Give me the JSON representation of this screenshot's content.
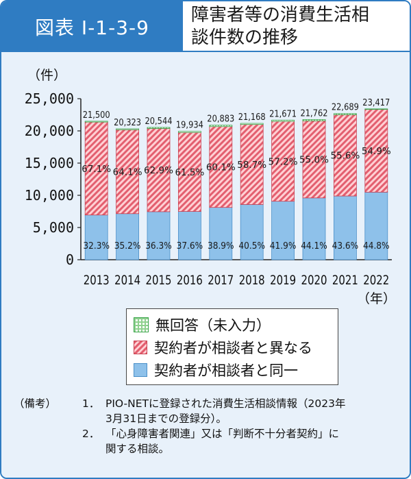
{
  "header": {
    "figure_label": "図表 I-1-3-9",
    "title_line1": "障害者等の消費生活相",
    "title_line2": "談件数の推移"
  },
  "colors": {
    "frame_blue": "#2f7cc2",
    "panel_bg": "#e8f1fa",
    "same_fill": "#8ec1ea",
    "diff_stripe": "#e35f6f",
    "diff_bg": "#ffd0d4",
    "none_fill": "#8fd18f"
  },
  "legend": {
    "items": [
      {
        "key": "none",
        "label": "無回答（未入力）"
      },
      {
        "key": "diff",
        "label": "契約者が相談者と異なる"
      },
      {
        "key": "same",
        "label": "契約者が相談者と同一"
      }
    ]
  },
  "notes": {
    "label": "（備考）",
    "items": [
      {
        "num": "1．",
        "line1": "PIO-NETに登録された消費生活相談情報（2023年",
        "line2": "3月31日までの登録分）。"
      },
      {
        "num": "2．",
        "line1": "「心身障害者関連」又は「判断不十分者契約」に",
        "line2": "関する相談。"
      }
    ]
  },
  "chart_data": {
    "type": "bar",
    "stacked": true,
    "y_unit_label": "（件）",
    "x_unit_label": "（年）",
    "categories": [
      "2013",
      "2014",
      "2015",
      "2016",
      "2017",
      "2018",
      "2019",
      "2020",
      "2021",
      "2022"
    ],
    "totals": [
      "21,500",
      "20,323",
      "20,544",
      "19,934",
      "20,883",
      "21,168",
      "21,671",
      "21,762",
      "22,689",
      "23,417"
    ],
    "total_values": [
      21500,
      20323,
      20544,
      19934,
      20883,
      21168,
      21671,
      21762,
      22689,
      23417
    ],
    "series": [
      {
        "name": "契約者が相談者と同一",
        "key": "same",
        "percent_labels": [
          "32.3%",
          "35.2%",
          "36.3%",
          "37.6%",
          "38.9%",
          "40.5%",
          "41.9%",
          "44.1%",
          "43.6%",
          "44.8%"
        ],
        "values": [
          6945,
          7154,
          7457,
          7495,
          8123,
          8573,
          9080,
          9597,
          9892,
          10491
        ]
      },
      {
        "name": "契約者が相談者と異なる",
        "key": "diff",
        "percent_labels": [
          "67.1%",
          "64.1%",
          "62.9%",
          "61.5%",
          "60.1%",
          "58.7%",
          "57.2%",
          "55.0%",
          "55.6%",
          "54.9%"
        ],
        "values": [
          14427,
          13027,
          12922,
          12259,
          12551,
          12426,
          12396,
          11969,
          12615,
          12856
        ]
      },
      {
        "name": "無回答（未入力）",
        "key": "none",
        "values": [
          129,
          142,
          164,
          179,
          209,
          169,
          195,
          196,
          182,
          70
        ]
      }
    ],
    "y_ticks": [
      "0",
      "5,000",
      "10,000",
      "15,000",
      "20,000",
      "25,000"
    ],
    "y_tick_values": [
      0,
      5000,
      10000,
      15000,
      20000,
      25000
    ],
    "ylim": [
      0,
      25000
    ],
    "grid": false,
    "legend_position": "bottom"
  }
}
